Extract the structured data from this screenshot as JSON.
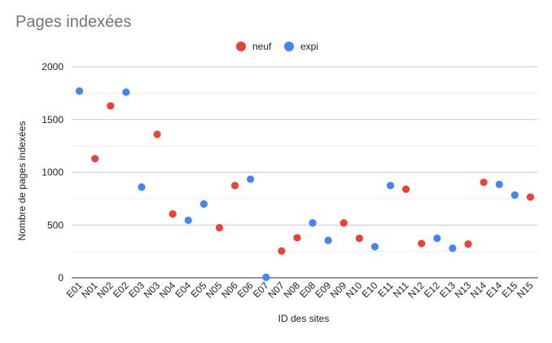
{
  "chart_data": {
    "type": "scatter",
    "title": "Pages indexées",
    "xlabel": "ID des sites",
    "ylabel": "Nombre de pages indexées",
    "ylim": [
      0,
      2000
    ],
    "y_ticks": [
      0,
      500,
      1000,
      1500,
      2000
    ],
    "grid": true,
    "legend_position": "top",
    "categories": [
      "E01",
      "N01",
      "N02",
      "E02",
      "E03",
      "N03",
      "N04",
      "E04",
      "E05",
      "N05",
      "N06",
      "E06",
      "E07",
      "N07",
      "N08",
      "E08",
      "E09",
      "N09",
      "N10",
      "E10",
      "E11",
      "N11",
      "N12",
      "E12",
      "E13",
      "N13",
      "N14",
      "E14",
      "E15",
      "N15"
    ],
    "series": [
      {
        "name": "neuf",
        "color": "#ea4335",
        "points": [
          {
            "x": "N01",
            "y": 1130
          },
          {
            "x": "N02",
            "y": 1630
          },
          {
            "x": "N03",
            "y": 1360
          },
          {
            "x": "N04",
            "y": 605
          },
          {
            "x": "N05",
            "y": 475
          },
          {
            "x": "N06",
            "y": 875
          },
          {
            "x": "N07",
            "y": 255
          },
          {
            "x": "N08",
            "y": 380
          },
          {
            "x": "N09",
            "y": 520
          },
          {
            "x": "N10",
            "y": 375
          },
          {
            "x": "N11",
            "y": 840
          },
          {
            "x": "N12",
            "y": 325
          },
          {
            "x": "N13",
            "y": 320
          },
          {
            "x": "N14",
            "y": 905
          },
          {
            "x": "N15",
            "y": 765
          }
        ]
      },
      {
        "name": "expi",
        "color": "#4285f4",
        "points": [
          {
            "x": "E01",
            "y": 1770
          },
          {
            "x": "E02",
            "y": 1760
          },
          {
            "x": "E03",
            "y": 860
          },
          {
            "x": "E04",
            "y": 545
          },
          {
            "x": "E05",
            "y": 700
          },
          {
            "x": "E06",
            "y": 935
          },
          {
            "x": "E07",
            "y": 5
          },
          {
            "x": "E08",
            "y": 520
          },
          {
            "x": "E09",
            "y": 355
          },
          {
            "x": "E10",
            "y": 295
          },
          {
            "x": "E11",
            "y": 875
          },
          {
            "x": "E12",
            "y": 375
          },
          {
            "x": "E13",
            "y": 280
          },
          {
            "x": "E14",
            "y": 885
          },
          {
            "x": "E15",
            "y": 785
          }
        ]
      }
    ]
  }
}
